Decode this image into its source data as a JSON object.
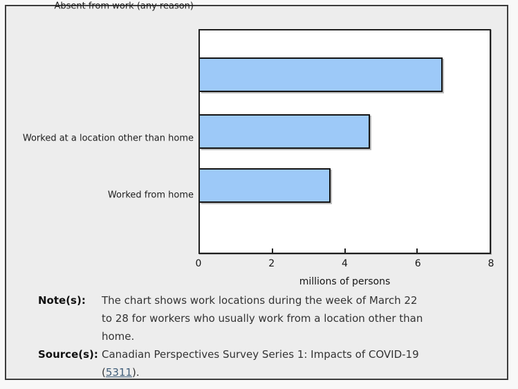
{
  "chart_data": {
    "type": "bar",
    "orientation": "horizontal",
    "categories": [
      "Worked at a location other than home",
      "Worked from home",
      "Absent from work (any reason)"
    ],
    "values": [
      6.7,
      4.7,
      3.6
    ],
    "title": "",
    "xlabel": "millions of persons",
    "ylabel": "",
    "xlim": [
      0,
      8
    ],
    "xticks": [
      0,
      2,
      4,
      6,
      8
    ],
    "grid": false,
    "legend": false,
    "bar_color": "#9dc9f8",
    "bar_border_color": "#141414"
  },
  "footer": {
    "note_label": "Note(s):",
    "note_text": "The chart shows work locations during the week of March 22 to 28 for workers who usually work from a location other than home.",
    "source_label": "Source(s):",
    "source_prefix": "Canadian Perspectives Survey Series 1: Impacts of COVID-19 (",
    "source_link_text": "5311",
    "source_suffix": ")."
  },
  "colors": {
    "page_background": "#f8f8f8",
    "panel_background": "#ededed",
    "panel_border": "#3c3c3c",
    "plot_background": "#ffffff",
    "axis_color": "#1f1f1f",
    "bar_fill": "#9dc9f8",
    "text_color": "#1d1d1d",
    "link_color": "#3e5c78"
  }
}
